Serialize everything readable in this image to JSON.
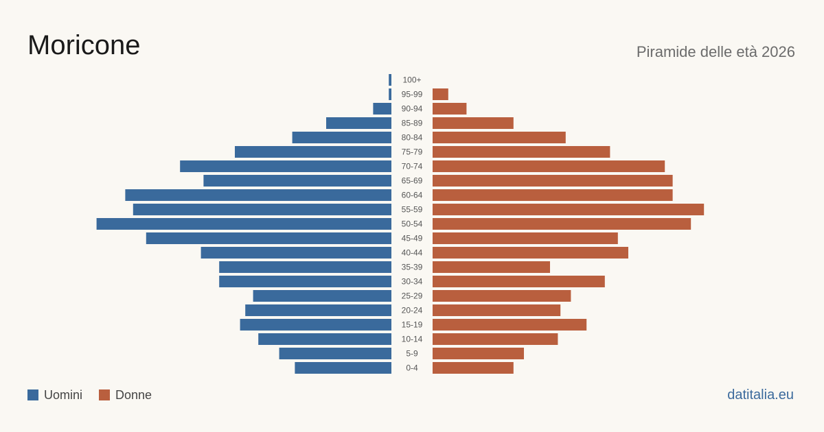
{
  "title": "Moricone",
  "subtitle": "Piramide delle età 2026",
  "source": "datitalia.eu",
  "colors": {
    "male": "#3a6a9c",
    "female": "#b95f3e"
  },
  "legend": {
    "male_label": "Uomini",
    "female_label": "Donne"
  },
  "chart_data": {
    "type": "bar",
    "orientation": "horizontal",
    "subtype": "population-pyramid",
    "categories": [
      "100+",
      "95-99",
      "90-94",
      "85-89",
      "80-84",
      "75-79",
      "70-74",
      "65-69",
      "60-64",
      "55-59",
      "50-54",
      "45-49",
      "40-44",
      "35-39",
      "30-34",
      "25-29",
      "20-24",
      "15-19",
      "10-14",
      "5-9",
      "0-4"
    ],
    "series": [
      {
        "name": "Uomini",
        "values": [
          1,
          1,
          7,
          25,
          38,
          60,
          81,
          72,
          102,
          99,
          113,
          94,
          73,
          66,
          66,
          53,
          56,
          58,
          51,
          43,
          37
        ]
      },
      {
        "name": "Donne",
        "values": [
          0,
          6,
          13,
          31,
          51,
          68,
          89,
          92,
          92,
          104,
          99,
          71,
          75,
          45,
          66,
          53,
          49,
          59,
          48,
          35,
          31
        ]
      }
    ],
    "grid": false,
    "legend_position": "bottom-left"
  }
}
